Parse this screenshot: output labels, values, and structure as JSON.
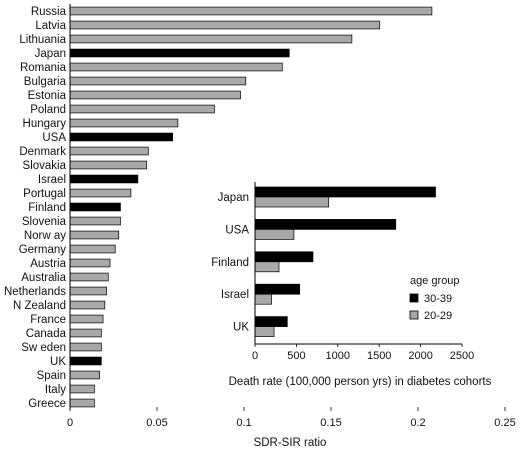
{
  "colors": {
    "age_30_39": "#000000",
    "age_20_29": "#a8a8a8",
    "bar_stroke": "#000000"
  },
  "chart_data": [
    {
      "type": "bar",
      "orientation": "horizontal",
      "title": "",
      "xlabel": "SDR-SIR ratio",
      "ylabel": "",
      "xlim": [
        0,
        0.25
      ],
      "xticks": [
        0,
        0.05,
        0.1,
        0.15,
        0.2,
        0.25
      ],
      "xtick_labels": [
        "0",
        "0.05",
        "0.1",
        "0.15",
        "0.2",
        "0.25"
      ],
      "grid": false,
      "categories": [
        "Russia",
        "Latvia",
        "Lithuania",
        "Japan",
        "Romania",
        "Bulgaria",
        "Estonia",
        "Poland",
        "Hungary",
        "USA",
        "Denmark",
        "Slovakia",
        "Israel",
        "Portugal",
        "Finland",
        "Slovenia",
        "Norw ay",
        "Germany",
        "Austria",
        "Australia",
        "Netherlands",
        "N Zealand",
        "France",
        "Canada",
        "Sw eden",
        "UK",
        "Spain",
        "Italy",
        "Greece"
      ],
      "values": [
        0.208,
        0.178,
        0.162,
        0.126,
        0.122,
        0.101,
        0.098,
        0.083,
        0.062,
        0.059,
        0.045,
        0.044,
        0.039,
        0.035,
        0.029,
        0.029,
        0.028,
        0.026,
        0.023,
        0.022,
        0.021,
        0.02,
        0.019,
        0.018,
        0.018,
        0.018,
        0.017,
        0.014,
        0.014
      ],
      "highlighted": [
        "Japan",
        "USA",
        "Israel",
        "Finland",
        "UK"
      ]
    },
    {
      "type": "bar",
      "orientation": "horizontal",
      "title": "",
      "xlabel": "Death rate (100,000 person yrs) in diabetes cohorts",
      "ylabel": "",
      "xlim": [
        0,
        2500
      ],
      "xticks": [
        0,
        500,
        1000,
        1500,
        2000,
        2500
      ],
      "xtick_labels": [
        "0",
        "500",
        "1000",
        "1500",
        "2000",
        "2500"
      ],
      "grid": false,
      "categories": [
        "Japan",
        "USA",
        "Finland",
        "Israel",
        "UK"
      ],
      "legend": {
        "title": "age group",
        "placement": "right"
      },
      "series": [
        {
          "name": "30-39",
          "values": [
            2180,
            1700,
            700,
            540,
            390
          ]
        },
        {
          "name": "20-29",
          "values": [
            890,
            470,
            290,
            200,
            230
          ]
        }
      ]
    }
  ]
}
